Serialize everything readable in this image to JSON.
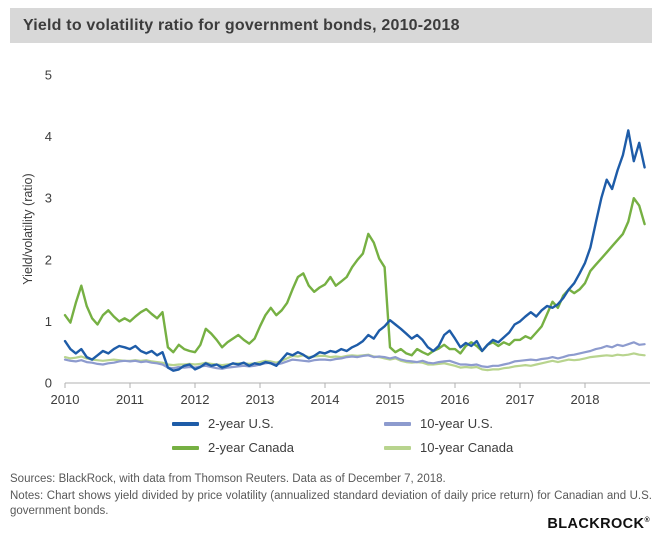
{
  "header": {
    "title": "Yield to volatility ratio for government bonds, 2010-2018"
  },
  "chart_data": {
    "type": "line",
    "title": "Yield to volatility ratio for government bonds, 2010-2018",
    "xlabel": "",
    "ylabel": "Yield/volatility (ratio)",
    "ylim": [
      0,
      5
    ],
    "y_ticks": [
      0,
      1,
      2,
      3,
      4,
      5
    ],
    "x_ticks": [
      2010,
      2011,
      2012,
      2013,
      2014,
      2015,
      2016,
      2017,
      2018
    ],
    "x_start": 2010,
    "x_end": 2019,
    "points_per_year": 12,
    "grid": false,
    "legend_position": "bottom",
    "axis_color": "#b0b0b0",
    "tick_label_color": "#3d3d3d",
    "series": [
      {
        "name": "2-year U.S.",
        "color": "#1e5ca8",
        "width": 2.4,
        "values": [
          0.68,
          0.55,
          0.48,
          0.55,
          0.42,
          0.38,
          0.45,
          0.52,
          0.48,
          0.55,
          0.6,
          0.58,
          0.55,
          0.6,
          0.52,
          0.48,
          0.52,
          0.45,
          0.5,
          0.25,
          0.2,
          0.22,
          0.28,
          0.3,
          0.22,
          0.26,
          0.32,
          0.28,
          0.3,
          0.25,
          0.28,
          0.32,
          0.3,
          0.33,
          0.28,
          0.32,
          0.3,
          0.34,
          0.32,
          0.28,
          0.38,
          0.48,
          0.45,
          0.5,
          0.46,
          0.4,
          0.44,
          0.5,
          0.48,
          0.52,
          0.5,
          0.55,
          0.52,
          0.58,
          0.62,
          0.68,
          0.78,
          0.72,
          0.85,
          0.92,
          1.02,
          0.95,
          0.88,
          0.8,
          0.72,
          0.78,
          0.7,
          0.58,
          0.52,
          0.6,
          0.78,
          0.85,
          0.72,
          0.58,
          0.65,
          0.6,
          0.68,
          0.52,
          0.62,
          0.7,
          0.66,
          0.74,
          0.82,
          0.95,
          1.0,
          1.08,
          1.15,
          1.08,
          1.18,
          1.25,
          1.22,
          1.28,
          1.38,
          1.52,
          1.62,
          1.78,
          1.95,
          2.2,
          2.6,
          3.0,
          3.3,
          3.15,
          3.45,
          3.7,
          4.1,
          3.6,
          3.9,
          3.5
        ]
      },
      {
        "name": "2-year Canada",
        "color": "#76b043",
        "width": 2.4,
        "values": [
          1.1,
          0.98,
          1.3,
          1.58,
          1.25,
          1.05,
          0.95,
          1.1,
          1.18,
          1.08,
          1.0,
          1.05,
          1.0,
          1.08,
          1.15,
          1.2,
          1.12,
          1.05,
          1.15,
          0.58,
          0.5,
          0.62,
          0.55,
          0.52,
          0.5,
          0.62,
          0.88,
          0.8,
          0.7,
          0.58,
          0.66,
          0.72,
          0.78,
          0.7,
          0.64,
          0.72,
          0.92,
          1.1,
          1.22,
          1.1,
          1.18,
          1.3,
          1.52,
          1.72,
          1.78,
          1.58,
          1.48,
          1.55,
          1.6,
          1.72,
          1.58,
          1.65,
          1.72,
          1.88,
          2.0,
          2.1,
          2.42,
          2.28,
          2.02,
          1.88,
          0.58,
          0.5,
          0.55,
          0.48,
          0.45,
          0.55,
          0.5,
          0.46,
          0.52,
          0.56,
          0.62,
          0.55,
          0.55,
          0.48,
          0.6,
          0.66,
          0.6,
          0.52,
          0.62,
          0.66,
          0.6,
          0.66,
          0.62,
          0.7,
          0.7,
          0.76,
          0.72,
          0.82,
          0.92,
          1.12,
          1.32,
          1.22,
          1.42,
          1.52,
          1.46,
          1.52,
          1.62,
          1.82,
          1.92,
          2.02,
          2.12,
          2.22,
          2.32,
          2.42,
          2.62,
          3.0,
          2.88,
          2.58
        ]
      },
      {
        "name": "10-year U.S.",
        "color": "#8d9bce",
        "width": 2.2,
        "values": [
          0.38,
          0.36,
          0.35,
          0.37,
          0.34,
          0.33,
          0.31,
          0.3,
          0.32,
          0.33,
          0.35,
          0.36,
          0.35,
          0.36,
          0.34,
          0.35,
          0.33,
          0.32,
          0.3,
          0.25,
          0.24,
          0.26,
          0.25,
          0.26,
          0.25,
          0.27,
          0.28,
          0.26,
          0.24,
          0.23,
          0.25,
          0.26,
          0.27,
          0.28,
          0.27,
          0.28,
          0.3,
          0.32,
          0.33,
          0.3,
          0.32,
          0.35,
          0.38,
          0.37,
          0.36,
          0.35,
          0.37,
          0.38,
          0.38,
          0.37,
          0.39,
          0.4,
          0.42,
          0.43,
          0.42,
          0.44,
          0.45,
          0.42,
          0.43,
          0.42,
          0.4,
          0.42,
          0.38,
          0.36,
          0.35,
          0.34,
          0.36,
          0.33,
          0.32,
          0.34,
          0.35,
          0.36,
          0.33,
          0.3,
          0.3,
          0.29,
          0.3,
          0.27,
          0.26,
          0.28,
          0.28,
          0.3,
          0.32,
          0.35,
          0.36,
          0.37,
          0.38,
          0.37,
          0.39,
          0.4,
          0.42,
          0.4,
          0.42,
          0.45,
          0.46,
          0.48,
          0.5,
          0.52,
          0.55,
          0.57,
          0.6,
          0.58,
          0.62,
          0.6,
          0.63,
          0.66,
          0.62,
          0.63
        ]
      },
      {
        "name": "10-year Canada",
        "color": "#b8d48e",
        "width": 2.2,
        "values": [
          0.42,
          0.4,
          0.41,
          0.43,
          0.4,
          0.38,
          0.37,
          0.36,
          0.37,
          0.38,
          0.37,
          0.36,
          0.36,
          0.37,
          0.36,
          0.37,
          0.35,
          0.34,
          0.33,
          0.3,
          0.29,
          0.3,
          0.3,
          0.31,
          0.3,
          0.31,
          0.33,
          0.31,
          0.3,
          0.29,
          0.3,
          0.31,
          0.32,
          0.32,
          0.31,
          0.32,
          0.34,
          0.36,
          0.35,
          0.33,
          0.36,
          0.4,
          0.44,
          0.43,
          0.45,
          0.42,
          0.43,
          0.44,
          0.44,
          0.42,
          0.43,
          0.42,
          0.44,
          0.45,
          0.44,
          0.45,
          0.46,
          0.43,
          0.42,
          0.4,
          0.38,
          0.4,
          0.36,
          0.34,
          0.33,
          0.34,
          0.33,
          0.3,
          0.3,
          0.31,
          0.32,
          0.3,
          0.28,
          0.25,
          0.26,
          0.25,
          0.26,
          0.22,
          0.21,
          0.22,
          0.22,
          0.24,
          0.25,
          0.27,
          0.28,
          0.29,
          0.28,
          0.3,
          0.32,
          0.34,
          0.36,
          0.34,
          0.36,
          0.38,
          0.37,
          0.38,
          0.4,
          0.42,
          0.43,
          0.44,
          0.45,
          0.44,
          0.46,
          0.45,
          0.46,
          0.48,
          0.46,
          0.45
        ]
      }
    ]
  },
  "footer": {
    "sources": "Sources: BlackRock, with data from Thomson Reuters. Data as of December 7, 2018.",
    "notes": "Notes: Chart shows yield divided by price volatility (annualized standard deviation of daily price return) for Canadian and U.S. government bonds.",
    "logo_text": "BLACKROCK",
    "logo_reg": "®"
  }
}
